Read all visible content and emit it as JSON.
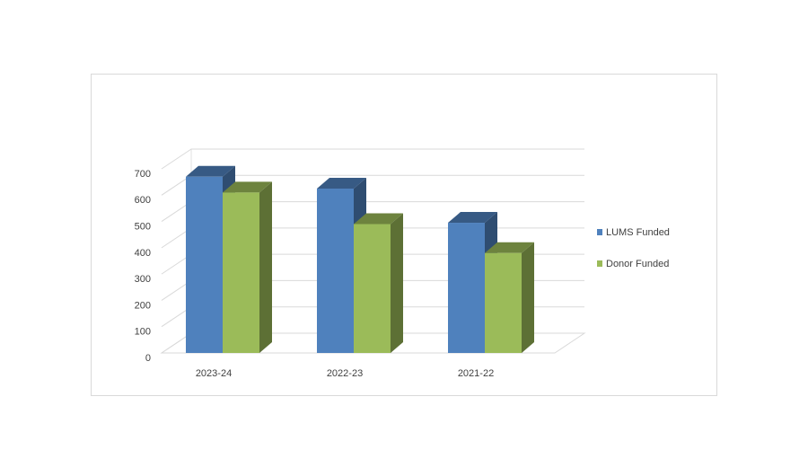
{
  "chart_data": {
    "type": "bar3d",
    "categories": [
      "2023-24",
      "2022-23",
      "2021-22"
    ],
    "series": [
      {
        "name": "LUMS Funded",
        "color": "#4f81bd",
        "values": [
          670,
          625,
          495
        ]
      },
      {
        "name": "Donor Funded",
        "color": "#9bbb59",
        "values": [
          610,
          490,
          380
        ]
      }
    ],
    "ylim": [
      0,
      700
    ],
    "yticks": [
      0,
      100,
      200,
      300,
      400,
      500,
      600,
      700
    ],
    "grid": true,
    "legend": "right"
  }
}
